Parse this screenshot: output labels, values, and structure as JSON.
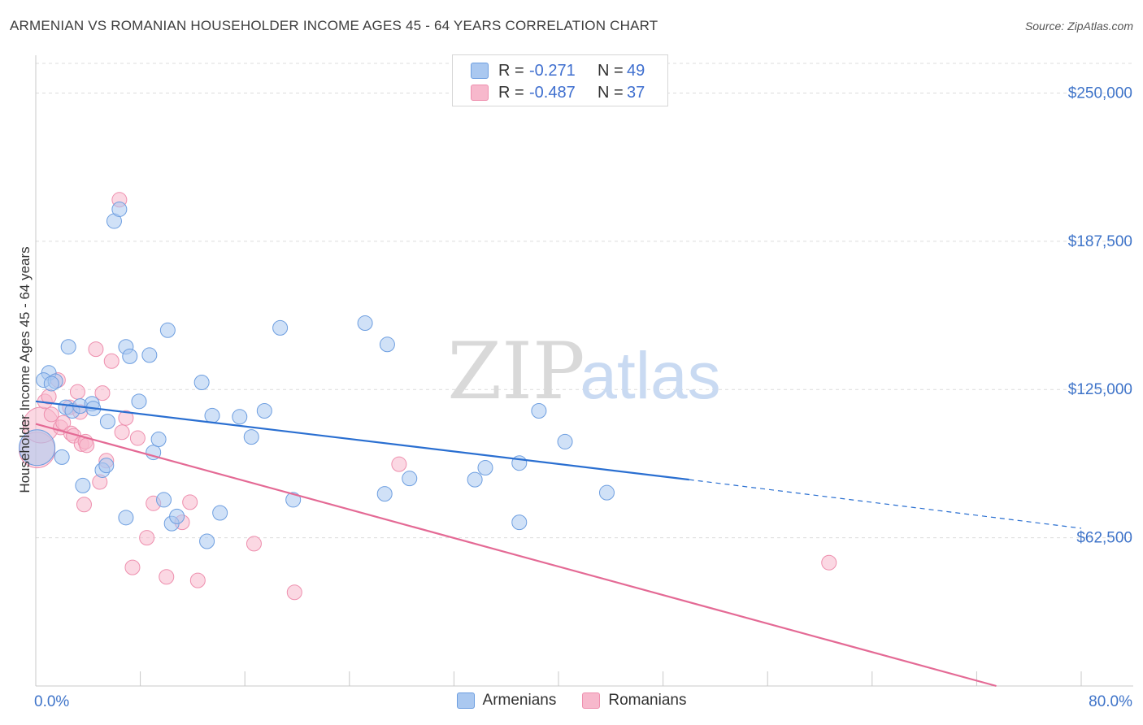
{
  "title": "ARMENIAN VS ROMANIAN HOUSEHOLDER INCOME AGES 45 - 64 YEARS CORRELATION CHART",
  "source": "Source: ZipAtlas.com",
  "watermark": {
    "zip": "ZIP",
    "atlas": "atlas"
  },
  "legend": {
    "rows": [
      {
        "r_label": "R =",
        "r_value": "-0.271",
        "n_label": "N =",
        "n_value": "49",
        "color": "#aac8f0"
      },
      {
        "r_label": "R =",
        "r_value": "-0.487",
        "n_label": "N =",
        "n_value": "37",
        "color": "#f7b8cc"
      }
    ]
  },
  "bottom_legend": [
    "Armenians",
    "Romanians"
  ],
  "colors": {
    "armenian_fill": "#aac8f0",
    "armenian_stroke": "#6d9ee0",
    "armenian_line": "#2a6fd1",
    "romanian_fill": "#f7b8cc",
    "romanian_stroke": "#ee8fae",
    "romanian_line": "#e46a95",
    "tick_label": "#3f74c9",
    "grid": "#dcdcdc"
  },
  "chart_data": {
    "type": "scatter",
    "title": "ARMENIAN VS ROMANIAN HOUSEHOLDER INCOME AGES 45 - 64 YEARS CORRELATION CHART",
    "xlabel": "",
    "ylabel": "Householder Income Ages 45 - 64 years",
    "xlim": [
      0,
      80
    ],
    "ylim": [
      0,
      262500
    ],
    "x_tick_labels": [
      "0.0%",
      "80.0%"
    ],
    "y_ticks": [
      62500,
      125000,
      187500,
      250000
    ],
    "y_tick_labels": [
      "$62,500",
      "$125,000",
      "$187,500",
      "$250,000"
    ],
    "grid": true,
    "legend_position": "top-center",
    "series": [
      {
        "name": "Armenians",
        "points": [
          [
            0.1,
            100500
          ],
          [
            1.0,
            132000
          ],
          [
            0.6,
            129000
          ],
          [
            1.5,
            128500
          ],
          [
            1.2,
            127500
          ],
          [
            2.5,
            143000
          ],
          [
            2.3,
            117500
          ],
          [
            2.8,
            116000
          ],
          [
            3.4,
            118000
          ],
          [
            4.3,
            119000
          ],
          [
            4.4,
            117000
          ],
          [
            5.5,
            111500
          ],
          [
            2.0,
            96500
          ],
          [
            3.6,
            84500
          ],
          [
            5.1,
            91000
          ],
          [
            5.4,
            93000
          ],
          [
            6.0,
            196000
          ],
          [
            6.4,
            201000
          ],
          [
            6.9,
            143000
          ],
          [
            7.2,
            139000
          ],
          [
            7.9,
            120000
          ],
          [
            8.7,
            139500
          ],
          [
            9.0,
            98500
          ],
          [
            9.4,
            104000
          ],
          [
            9.8,
            78500
          ],
          [
            10.1,
            150000
          ],
          [
            10.4,
            68500
          ],
          [
            10.8,
            71500
          ],
          [
            12.7,
            128000
          ],
          [
            13.1,
            61000
          ],
          [
            13.5,
            114000
          ],
          [
            14.1,
            73000
          ],
          [
            15.6,
            113500
          ],
          [
            16.5,
            105000
          ],
          [
            17.5,
            116000
          ],
          [
            18.7,
            151000
          ],
          [
            19.7,
            78500
          ],
          [
            25.2,
            153000
          ],
          [
            26.7,
            81000
          ],
          [
            26.9,
            144000
          ],
          [
            28.6,
            87500
          ],
          [
            33.6,
            87000
          ],
          [
            34.4,
            92000
          ],
          [
            37.0,
            69000
          ],
          [
            37.0,
            94000
          ],
          [
            38.5,
            116000
          ],
          [
            40.5,
            103000
          ],
          [
            43.7,
            81500
          ],
          [
            6.9,
            71000
          ]
        ]
      },
      {
        "name": "Romanians",
        "points": [
          [
            0.1,
            99500
          ],
          [
            0.4,
            110000
          ],
          [
            0.7,
            120000
          ],
          [
            1.0,
            122000
          ],
          [
            1.2,
            114500
          ],
          [
            1.7,
            129000
          ],
          [
            1.9,
            109000
          ],
          [
            2.1,
            111000
          ],
          [
            2.6,
            117500
          ],
          [
            2.7,
            106500
          ],
          [
            2.9,
            105500
          ],
          [
            3.2,
            124000
          ],
          [
            3.4,
            115500
          ],
          [
            3.5,
            102000
          ],
          [
            3.8,
            103000
          ],
          [
            3.9,
            101500
          ],
          [
            4.6,
            142000
          ],
          [
            4.9,
            86000
          ],
          [
            5.1,
            123500
          ],
          [
            5.4,
            95000
          ],
          [
            5.8,
            137000
          ],
          [
            6.4,
            205000
          ],
          [
            6.6,
            107000
          ],
          [
            6.9,
            113000
          ],
          [
            7.4,
            50000
          ],
          [
            7.8,
            104500
          ],
          [
            8.5,
            62500
          ],
          [
            9.0,
            77000
          ],
          [
            10.0,
            46000
          ],
          [
            11.2,
            69000
          ],
          [
            11.8,
            77500
          ],
          [
            12.4,
            44500
          ],
          [
            3.7,
            76500
          ],
          [
            16.7,
            60000
          ],
          [
            19.8,
            39500
          ],
          [
            27.8,
            93500
          ],
          [
            60.7,
            52000
          ]
        ]
      }
    ],
    "trend_lines": [
      {
        "series": "Armenians",
        "from": [
          0,
          120000
        ],
        "to": [
          50,
          87000
        ],
        "dashed_to": [
          80,
          66500
        ]
      },
      {
        "series": "Romanians",
        "from": [
          0,
          110500
        ],
        "to": [
          73.5,
          0
        ]
      }
    ]
  }
}
